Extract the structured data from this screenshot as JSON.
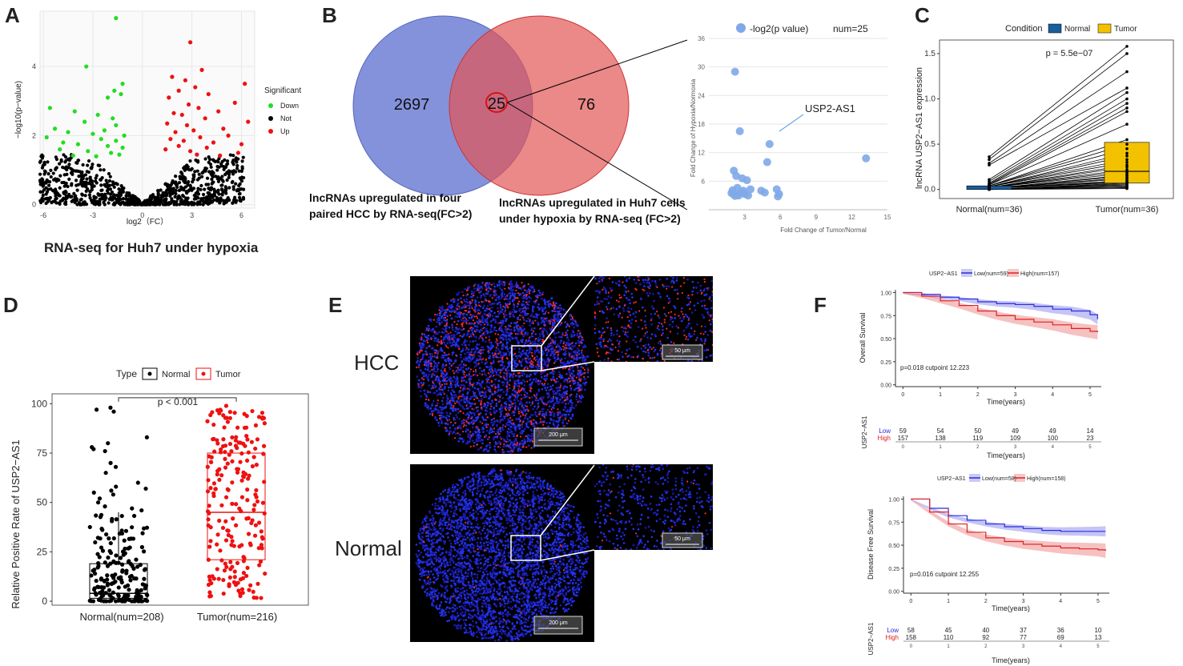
{
  "panels": {
    "A": {
      "letter": "A",
      "caption": "RNA-seq for Huh7 under hypoxia",
      "legend_title": "Significant",
      "legend": [
        {
          "label": "Down",
          "color": "#22dd22"
        },
        {
          "label": "Not",
          "color": "#000000"
        },
        {
          "label": "Up",
          "color": "#ee1111"
        }
      ],
      "xlabel": "log2（FC）",
      "ylabel": "−log10(p−value)"
    },
    "B": {
      "letter": "B",
      "left_count": "2697",
      "overlap_count": "25",
      "right_count": "76",
      "left_label_line1": "lncRNAs upregulated in four",
      "left_label_line2": "paired HCC by RNA-seq(FC>2)",
      "right_label_line1": "lncRNAs upregulated in Huh7 cells",
      "right_label_line2": "under hypoxia by RNA-seq (FC>2)",
      "scatter_legend": "-log2(p value)",
      "scatter_num": "num=25",
      "annotation": "USP2-AS1",
      "xlabel": "Fold Change of Tumor/Normal",
      "ylabel": "Fold Change of Hypoxia/Normoxia"
    },
    "C": {
      "letter": "C",
      "legend_title": "Condition",
      "legend": [
        {
          "label": "Normal",
          "color": "#1a5e9a"
        },
        {
          "label": "Tumor",
          "color": "#f2c200"
        }
      ],
      "pvalue": "p = 5.5e−07",
      "ylabel": "lncRNA USP2−AS1 expression",
      "categories": [
        "Normal(num=36)",
        "Tumor(num=36)"
      ]
    },
    "D": {
      "letter": "D",
      "legend_title": "Type",
      "legend": [
        {
          "label": "Normal",
          "color": "#000000"
        },
        {
          "label": "Tumor",
          "color": "#ee1111"
        }
      ],
      "pvalue": "p < 0.001",
      "ylabel": "Relative Positive Rate of USP2−AS1",
      "categories": [
        "Normal(num=208)",
        "Tumor(num=216)"
      ]
    },
    "E": {
      "letter": "E",
      "label_hcc": "HCC",
      "label_normal": "Normal",
      "scale_200": "200 μm",
      "scale_50": "50 μm"
    },
    "F": {
      "letter": "F",
      "os": {
        "legend_title": "USP2−AS1",
        "low_label": "Low(num=59)",
        "high_label": "High(num=157)",
        "ylabel": "Overall Survival",
        "xlabel": "Time(years)",
        "annotation": "p=0.018 cutpoint 12.223",
        "risk_title": "USP2−AS1",
        "risk_low": [
          "59",
          "54",
          "50",
          "49",
          "49",
          "14"
        ],
        "risk_high": [
          "157",
          "138",
          "119",
          "109",
          "100",
          "23"
        ]
      },
      "dfs": {
        "legend_title": "USP2−AS1",
        "low_label": "Low(num=58)",
        "high_label": "High(num=158)",
        "ylabel": "Disease Free Survival",
        "xlabel": "Time(years)",
        "annotation": "p=0.016 cutpoint 12.255",
        "risk_title": "USP2−AS1",
        "risk_low": [
          "58",
          "45",
          "40",
          "37",
          "36",
          "10"
        ],
        "risk_high": [
          "158",
          "110",
          "92",
          "77",
          "69",
          "13"
        ]
      },
      "low_word": "Low",
      "high_word": "High"
    }
  },
  "chart_data": [
    {
      "id": "A-volcano",
      "type": "scatter",
      "xlabel": "log2（FC）",
      "ylabel": "−log10(p−value)",
      "xlim": [
        -6.2,
        6.8
      ],
      "ylim": [
        -0.1,
        5.6
      ],
      "xticks": [
        -6,
        -3,
        0,
        3,
        6
      ],
      "yticks": [
        0,
        2,
        4
      ],
      "series": [
        {
          "name": "Down",
          "color": "#22dd22",
          "points": [
            [
              -1.6,
              5.4
            ],
            [
              -3.4,
              4.0
            ],
            [
              -1.2,
              3.5
            ],
            [
              -1.7,
              3.3
            ],
            [
              -1.3,
              3.2
            ],
            [
              -2.1,
              3.1
            ],
            [
              -5.6,
              2.8
            ],
            [
              -4.1,
              2.7
            ],
            [
              -2.7,
              2.6
            ],
            [
              -1.8,
              2.5
            ],
            [
              -3.5,
              2.4
            ],
            [
              -1.6,
              2.3
            ],
            [
              -5.3,
              2.2
            ],
            [
              -2.3,
              2.15
            ],
            [
              -4.5,
              2.1
            ],
            [
              -3.0,
              2.05
            ],
            [
              -1.1,
              2.0
            ],
            [
              -5.8,
              1.95
            ],
            [
              -2.5,
              1.9
            ],
            [
              -1.6,
              1.85
            ],
            [
              -4.8,
              1.8
            ],
            [
              -3.9,
              1.75
            ],
            [
              -2.1,
              1.7
            ],
            [
              -1.2,
              1.65
            ],
            [
              -5.0,
              1.6
            ],
            [
              -3.3,
              1.55
            ],
            [
              -1.9,
              1.5
            ],
            [
              -1.4,
              1.45
            ],
            [
              -4.2,
              1.42
            ],
            [
              -2.8,
              1.4
            ]
          ]
        },
        {
          "name": "Up",
          "color": "#ee1111",
          "points": [
            [
              2.9,
              4.7
            ],
            [
              3.6,
              3.9
            ],
            [
              1.8,
              3.7
            ],
            [
              2.6,
              3.6
            ],
            [
              6.2,
              3.5
            ],
            [
              3.2,
              3.4
            ],
            [
              2.2,
              3.3
            ],
            [
              4.0,
              3.2
            ],
            [
              1.6,
              3.1
            ],
            [
              5.6,
              2.95
            ],
            [
              2.8,
              2.9
            ],
            [
              3.4,
              2.8
            ],
            [
              4.6,
              2.7
            ],
            [
              1.9,
              2.65
            ],
            [
              2.4,
              2.6
            ],
            [
              3.8,
              2.5
            ],
            [
              6.4,
              2.4
            ],
            [
              1.5,
              2.35
            ],
            [
              2.7,
              2.3
            ],
            [
              4.9,
              2.2
            ],
            [
              3.1,
              2.15
            ],
            [
              2.0,
              2.1
            ],
            [
              5.2,
              2.0
            ],
            [
              3.5,
              1.95
            ],
            [
              1.7,
              1.9
            ],
            [
              2.5,
              1.85
            ],
            [
              4.3,
              1.8
            ],
            [
              6.0,
              1.75
            ],
            [
              2.2,
              1.7
            ],
            [
              3.9,
              1.65
            ],
            [
              1.4,
              1.6
            ],
            [
              2.9,
              1.55
            ],
            [
              5.8,
              1.5
            ],
            [
              3.3,
              1.45
            ],
            [
              4.7,
              1.42
            ]
          ]
        }
      ]
    },
    {
      "id": "B-scatter",
      "type": "scatter",
      "xlabel": "Fold Change of Tumor/Normal",
      "ylabel": "Fold Change of Hypoxia/Normoxia",
      "xlim": [
        0,
        15
      ],
      "ylim": [
        0,
        36
      ],
      "xticks": [
        3,
        6,
        9,
        12,
        15
      ],
      "yticks": [
        6,
        12,
        18,
        24,
        30,
        36
      ],
      "points": [
        [
          2.2,
          29.0
        ],
        [
          2.6,
          16.5
        ],
        [
          13.2,
          10.8
        ],
        [
          5.1,
          13.8
        ],
        [
          4.9,
          10.0
        ],
        [
          2.1,
          8.2
        ],
        [
          2.3,
          7.1
        ],
        [
          2.8,
          6.6
        ],
        [
          3.2,
          6.2
        ],
        [
          2.0,
          4.1
        ],
        [
          2.4,
          4.6
        ],
        [
          2.9,
          4.0
        ],
        [
          3.5,
          4.3
        ],
        [
          4.4,
          4.0
        ],
        [
          4.7,
          3.6
        ],
        [
          5.7,
          4.3
        ],
        [
          5.9,
          3.3
        ],
        [
          5.8,
          2.8
        ],
        [
          2.1,
          3.2
        ],
        [
          2.5,
          3.0
        ],
        [
          3.0,
          3.3
        ],
        [
          1.9,
          3.5
        ],
        [
          2.7,
          3.6
        ],
        [
          3.3,
          3.0
        ],
        [
          2.2,
          2.9
        ]
      ],
      "annotation": {
        "label": "USP2-AS1",
        "x": 5.1,
        "y": 13.8
      }
    },
    {
      "id": "C-paired-box",
      "type": "box",
      "categories": [
        "Normal(num=36)",
        "Tumor(num=36)"
      ],
      "ylim": [
        -0.1,
        1.65
      ],
      "yticks": [
        0.0,
        0.5,
        1.0,
        1.5
      ],
      "normal_values": [
        0.36,
        0.33,
        0.29,
        0.27,
        0.11,
        0.09,
        0.07,
        0.06,
        0.05,
        0.05,
        0.04,
        0.04,
        0.04,
        0.03,
        0.03,
        0.03,
        0.03,
        0.02,
        0.02,
        0.02,
        0.02,
        0.02,
        0.01,
        0.01,
        0.01,
        0.01,
        0.01,
        0.01,
        0.01,
        0.0,
        0.0,
        0.0,
        0.0,
        0.0,
        0.0,
        0.0
      ],
      "tumor_values": [
        1.58,
        1.5,
        1.3,
        1.12,
        1.07,
        1.0,
        0.95,
        0.9,
        0.86,
        0.72,
        0.55,
        0.5,
        0.45,
        0.4,
        0.37,
        0.33,
        0.3,
        0.27,
        0.25,
        0.22,
        0.2,
        0.18,
        0.16,
        0.15,
        0.13,
        0.12,
        0.1,
        0.09,
        0.08,
        0.07,
        0.06,
        0.05,
        0.04,
        0.03,
        0.02,
        0.01
      ],
      "box_normal": {
        "q1": 0.0,
        "median": 0.01,
        "q3": 0.04
      },
      "box_tumor": {
        "q1": 0.07,
        "median": 0.2,
        "q3": 0.52
      }
    },
    {
      "id": "D-box",
      "type": "box",
      "categories": [
        "Normal(num=208)",
        "Tumor(num=216)"
      ],
      "ylim": [
        -2,
        105
      ],
      "yticks": [
        0,
        25,
        50,
        75,
        100
      ],
      "box_normal": {
        "min": 0,
        "q1": 1.5,
        "median": 4,
        "q3": 19,
        "max": 45
      },
      "box_tumor": {
        "min": 0,
        "q1": 21,
        "median": 45,
        "q3": 75,
        "max": 99
      },
      "normal_outliers": [
        98,
        97,
        96,
        83,
        80,
        78,
        77,
        76,
        70,
        68,
        65,
        60,
        58,
        57,
        56,
        55,
        54,
        52,
        50,
        48,
        47,
        46
      ],
      "n_normal": 208,
      "n_tumor": 216
    },
    {
      "id": "F-os-km",
      "type": "line",
      "title": "Overall Survival",
      "xlabel": "Time(years)",
      "xlim": [
        -0.2,
        5.3
      ],
      "ylim": [
        -0.02,
        1.03
      ],
      "xticks": [
        0,
        1,
        2,
        3,
        4,
        5
      ],
      "yticks": [
        0.0,
        0.25,
        0.5,
        0.75,
        1.0
      ],
      "series": [
        {
          "name": "Low(num=59)",
          "color": "#2b2bdd",
          "x": [
            0,
            0.5,
            1,
            1.5,
            2,
            2.5,
            3,
            3.5,
            4,
            4.5,
            5,
            5.2
          ],
          "y": [
            1.0,
            0.98,
            0.95,
            0.93,
            0.9,
            0.88,
            0.87,
            0.85,
            0.82,
            0.8,
            0.76,
            0.71
          ]
        },
        {
          "name": "High(num=157)",
          "color": "#e02020",
          "x": [
            0,
            0.5,
            1,
            1.5,
            2,
            2.5,
            3,
            3.5,
            4,
            4.5,
            5,
            5.2
          ],
          "y": [
            1.0,
            0.96,
            0.91,
            0.86,
            0.8,
            0.75,
            0.71,
            0.68,
            0.65,
            0.61,
            0.58,
            0.57
          ]
        }
      ]
    },
    {
      "id": "F-dfs-km",
      "type": "line",
      "title": "Disease Free Survival",
      "xlabel": "Time(years)",
      "xlim": [
        -0.2,
        5.3
      ],
      "ylim": [
        -0.02,
        1.03
      ],
      "xticks": [
        0,
        1,
        2,
        3,
        4,
        5
      ],
      "yticks": [
        0.0,
        0.25,
        0.5,
        0.75,
        1.0
      ],
      "series": [
        {
          "name": "Low(num=58)",
          "color": "#2b2bdd",
          "x": [
            0,
            0.5,
            1,
            1.5,
            2,
            2.5,
            3,
            3.5,
            4,
            4.5,
            5,
            5.2
          ],
          "y": [
            1.0,
            0.9,
            0.82,
            0.77,
            0.73,
            0.7,
            0.68,
            0.66,
            0.65,
            0.65,
            0.65,
            0.65
          ]
        },
        {
          "name": "High(num=158)",
          "color": "#e02020",
          "x": [
            0,
            0.5,
            1,
            1.5,
            2,
            2.5,
            3,
            3.5,
            4,
            4.5,
            5,
            5.2
          ],
          "y": [
            1.0,
            0.86,
            0.73,
            0.64,
            0.58,
            0.54,
            0.51,
            0.49,
            0.47,
            0.46,
            0.45,
            0.44
          ]
        }
      ]
    }
  ]
}
